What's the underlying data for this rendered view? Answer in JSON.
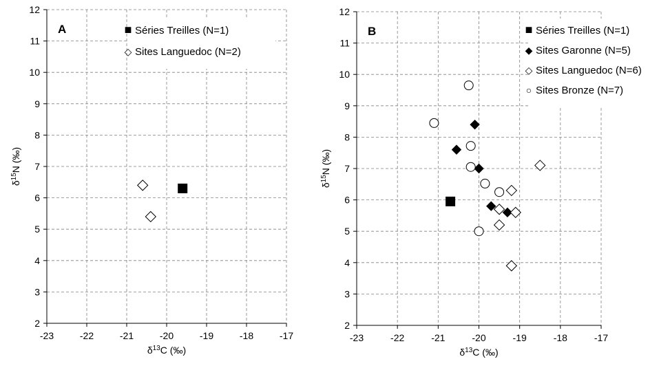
{
  "chart_data": [
    {
      "type": "scatter",
      "panel": "A",
      "xlabel": "δ13C (‰)",
      "ylabel": "δ15N (‰)",
      "xlim": [
        -23,
        -17
      ],
      "ylim": [
        2,
        12
      ],
      "xticks": [
        -23,
        -22,
        -21,
        -20,
        -19,
        -18,
        -17
      ],
      "yticks": [
        2,
        3,
        4,
        5,
        6,
        7,
        8,
        9,
        10,
        11,
        12
      ],
      "grid": true,
      "legend_position": "top-right",
      "series": [
        {
          "name": "Séries Treilles (N=1)",
          "marker": "filled-square",
          "points": [
            {
              "x": -19.6,
              "y": 6.3
            }
          ]
        },
        {
          "name": "Sites Languedoc (N=2)",
          "marker": "open-diamond",
          "points": [
            {
              "x": -20.6,
              "y": 6.4
            },
            {
              "x": -20.4,
              "y": 5.4
            }
          ]
        }
      ]
    },
    {
      "type": "scatter",
      "panel": "B",
      "xlabel": "δ13C (‰)",
      "ylabel": "δ15N (‰)",
      "xlim": [
        -23,
        -17
      ],
      "ylim": [
        2,
        12
      ],
      "xticks": [
        -23,
        -22,
        -21,
        -20,
        -19,
        -18,
        -17
      ],
      "yticks": [
        2,
        3,
        4,
        5,
        6,
        7,
        8,
        9,
        10,
        11,
        12
      ],
      "grid": true,
      "legend_position": "top-right",
      "series": [
        {
          "name": "Séries Treilles (N=1)",
          "marker": "filled-square",
          "points": [
            {
              "x": -20.7,
              "y": 5.95
            }
          ]
        },
        {
          "name": "Sites Garonne (N=5)",
          "marker": "filled-diamond",
          "points": [
            {
              "x": -20.1,
              "y": 8.4
            },
            {
              "x": -20.55,
              "y": 7.6
            },
            {
              "x": -20.0,
              "y": 7.0
            },
            {
              "x": -19.7,
              "y": 5.8
            },
            {
              "x": -19.3,
              "y": 5.6
            }
          ]
        },
        {
          "name": "Sites Languedoc (N=6)",
          "marker": "open-diamond",
          "points": [
            {
              "x": -18.5,
              "y": 7.1
            },
            {
              "x": -19.2,
              "y": 6.3
            },
            {
              "x": -19.5,
              "y": 5.7
            },
            {
              "x": -19.1,
              "y": 5.6
            },
            {
              "x": -19.5,
              "y": 5.2
            },
            {
              "x": -19.2,
              "y": 3.9
            }
          ]
        },
        {
          "name": "Sites Bronze (N=7)",
          "marker": "open-circle",
          "points": [
            {
              "x": -20.25,
              "y": 9.65
            },
            {
              "x": -21.1,
              "y": 8.45
            },
            {
              "x": -20.2,
              "y": 7.72
            },
            {
              "x": -20.2,
              "y": 7.05
            },
            {
              "x": -19.85,
              "y": 6.52
            },
            {
              "x": -19.5,
              "y": 6.25
            },
            {
              "x": -20.0,
              "y": 5.0
            }
          ]
        }
      ]
    }
  ]
}
